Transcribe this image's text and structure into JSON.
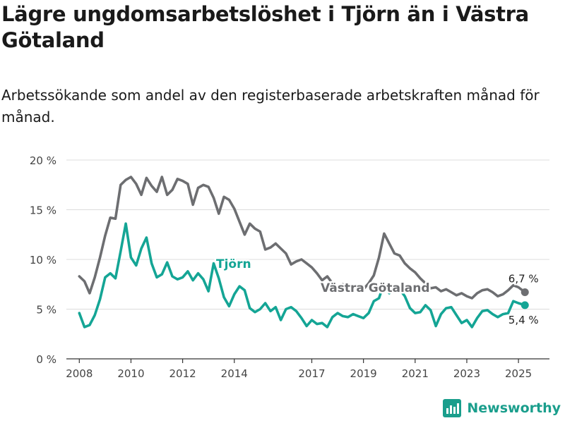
{
  "title": "Lägre ungdomsarbetslöshet i Tjörn än i Västra Götaland",
  "subtitle": "Arbetssökande som andel av den registerbaserade arbetskraften månad för månad.",
  "brand": {
    "name": "Newsworthy"
  },
  "colors": {
    "vg": "#6d6e71",
    "tjorn": "#14a595",
    "grid": "#dcdcdc",
    "axis": "#333333"
  },
  "chart_data": {
    "type": "line",
    "title": "Lägre ungdomsarbetslöshet i Tjörn än i Västra Götaland",
    "xlabel": "",
    "ylabel": "",
    "xlim": [
      2007.5,
      2026.2
    ],
    "ylim": [
      0,
      20
    ],
    "y_ticks": [
      0,
      5,
      10,
      15,
      20
    ],
    "y_tick_labels": [
      "0 %",
      "5 %",
      "10 %",
      "15 %",
      "20 %"
    ],
    "x_ticks": [
      2008,
      2010,
      2012,
      2014,
      2017,
      2019,
      2021,
      2023,
      2025
    ],
    "x_tick_labels": [
      "2008",
      "2010",
      "2012",
      "2014",
      "2017",
      "2019",
      "2021",
      "2023",
      "2025"
    ],
    "grid": "horizontal",
    "series": [
      {
        "name": "Västra Götaland",
        "color": "#6d6e71",
        "end_label": "6,7 %",
        "x": [
          2008.0,
          2008.2,
          2008.4,
          2008.6,
          2008.8,
          2009.0,
          2009.2,
          2009.4,
          2009.6,
          2009.8,
          2010.0,
          2010.2,
          2010.4,
          2010.6,
          2010.8,
          2011.0,
          2011.2,
          2011.4,
          2011.6,
          2011.8,
          2012.0,
          2012.2,
          2012.4,
          2012.6,
          2012.8,
          2013.0,
          2013.2,
          2013.4,
          2013.6,
          2013.8,
          2014.0,
          2014.2,
          2014.4,
          2014.6,
          2014.8,
          2015.0,
          2015.2,
          2015.4,
          2015.6,
          2015.8,
          2016.0,
          2016.2,
          2016.4,
          2016.6,
          2016.8,
          2017.0,
          2017.2,
          2017.4,
          2017.6,
          2017.8,
          2018.0,
          2018.2,
          2018.4,
          2018.6,
          2018.8,
          2019.0,
          2019.2,
          2019.4,
          2019.6,
          2019.8,
          2020.0,
          2020.2,
          2020.4,
          2020.6,
          2020.8,
          2021.0,
          2021.2,
          2021.4,
          2021.6,
          2021.8,
          2022.0,
          2022.2,
          2022.4,
          2022.6,
          2022.8,
          2023.0,
          2023.2,
          2023.4,
          2023.6,
          2023.8,
          2024.0,
          2024.2,
          2024.4,
          2024.6,
          2024.8,
          2025.0,
          2025.25
        ],
        "values": [
          8.3,
          7.8,
          6.6,
          8.2,
          10.2,
          12.4,
          14.2,
          14.1,
          17.5,
          18.0,
          18.3,
          17.6,
          16.5,
          18.2,
          17.4,
          16.8,
          18.3,
          16.5,
          17.0,
          18.1,
          17.9,
          17.6,
          15.5,
          17.2,
          17.5,
          17.3,
          16.2,
          14.6,
          16.3,
          16.0,
          15.1,
          13.8,
          12.5,
          13.6,
          13.1,
          12.8,
          11.0,
          11.2,
          11.6,
          11.1,
          10.6,
          9.5,
          9.8,
          10.0,
          9.6,
          9.2,
          8.6,
          7.9,
          8.3,
          7.6,
          7.2,
          7.5,
          7.0,
          7.3,
          7.1,
          7.0,
          7.6,
          8.4,
          10.2,
          12.6,
          11.6,
          10.6,
          10.4,
          9.6,
          9.1,
          8.7,
          8.1,
          7.6,
          7.1,
          7.2,
          6.8,
          7.0,
          6.7,
          6.4,
          6.6,
          6.3,
          6.1,
          6.6,
          6.9,
          7.0,
          6.7,
          6.3,
          6.5,
          6.9,
          7.4,
          7.2,
          6.7
        ]
      },
      {
        "name": "Tjörn",
        "color": "#14a595",
        "end_label": "5,4 %",
        "x": [
          2008.0,
          2008.2,
          2008.4,
          2008.6,
          2008.8,
          2009.0,
          2009.2,
          2009.4,
          2009.6,
          2009.8,
          2010.0,
          2010.2,
          2010.4,
          2010.6,
          2010.8,
          2011.0,
          2011.2,
          2011.4,
          2011.6,
          2011.8,
          2012.0,
          2012.2,
          2012.4,
          2012.6,
          2012.8,
          2013.0,
          2013.2,
          2013.4,
          2013.6,
          2013.8,
          2014.0,
          2014.2,
          2014.4,
          2014.6,
          2014.8,
          2015.0,
          2015.2,
          2015.4,
          2015.6,
          2015.8,
          2016.0,
          2016.2,
          2016.4,
          2016.6,
          2016.8,
          2017.0,
          2017.2,
          2017.4,
          2017.6,
          2017.8,
          2018.0,
          2018.2,
          2018.4,
          2018.6,
          2018.8,
          2019.0,
          2019.2,
          2019.4,
          2019.6,
          2019.8,
          2020.0,
          2020.2,
          2020.4,
          2020.6,
          2020.8,
          2021.0,
          2021.2,
          2021.4,
          2021.6,
          2021.8,
          2022.0,
          2022.2,
          2022.4,
          2022.6,
          2022.8,
          2023.0,
          2023.2,
          2023.4,
          2023.6,
          2023.8,
          2024.0,
          2024.2,
          2024.4,
          2024.6,
          2024.8,
          2025.0,
          2025.25
        ],
        "values": [
          4.6,
          3.2,
          3.4,
          4.4,
          6.0,
          8.2,
          8.6,
          8.1,
          10.8,
          13.6,
          10.2,
          9.4,
          11.1,
          12.2,
          9.6,
          8.2,
          8.5,
          9.7,
          8.3,
          8.0,
          8.2,
          8.8,
          7.9,
          8.6,
          8.0,
          6.8,
          9.6,
          8.1,
          6.2,
          5.3,
          6.5,
          7.3,
          6.9,
          5.1,
          4.7,
          5.0,
          5.6,
          4.8,
          5.2,
          3.9,
          5.0,
          5.2,
          4.8,
          4.1,
          3.3,
          3.9,
          3.5,
          3.6,
          3.2,
          4.2,
          4.6,
          4.3,
          4.2,
          4.5,
          4.3,
          4.1,
          4.6,
          5.8,
          6.1,
          7.6,
          6.6,
          7.3,
          7.0,
          6.3,
          5.1,
          4.6,
          4.7,
          5.4,
          4.9,
          3.3,
          4.5,
          5.1,
          5.2,
          4.4,
          3.6,
          3.9,
          3.2,
          4.1,
          4.8,
          4.9,
          4.5,
          4.2,
          4.5,
          4.6,
          5.8,
          5.6,
          5.4
        ]
      }
    ],
    "annotations": [
      {
        "text": "Tjörn",
        "series": "Tjörn"
      },
      {
        "text": "Västra Götaland",
        "series": "Västra Götaland"
      }
    ]
  }
}
